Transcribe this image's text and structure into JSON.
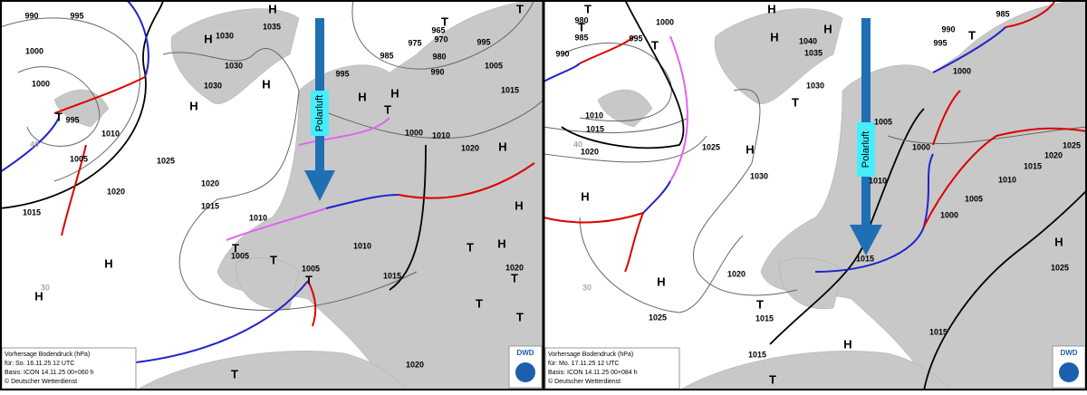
{
  "panels": [
    {
      "labels": [
        "990",
        "995",
        "1000",
        "1000",
        "995",
        "1005",
        "1010",
        "1020",
        "1015",
        "1025",
        "1020",
        "1015",
        "1010",
        "1005",
        "1030",
        "1035",
        "1030",
        "1030",
        "995",
        "985",
        "975",
        "970",
        "965",
        "980",
        "990",
        "995",
        "1005",
        "1015",
        "1000",
        "1010",
        "1020",
        "1010",
        "1015",
        "1005",
        "1020",
        "1020",
        "40",
        "30",
        "H",
        "H",
        "H",
        "H",
        "H",
        "H",
        "T",
        "T",
        "T",
        "T",
        "H",
        "H",
        "H",
        "T",
        "T",
        "T",
        "H",
        "H",
        "T",
        "T",
        "T",
        "T",
        "T"
      ],
      "arrow_label": "Polarluft",
      "footer": [
        "Vorhersage Bodendruck (hPa)",
        "für: So. 16.11.25  12 UTC",
        "Basis: ICON  14.11.25 00+060 h",
        "© Deutscher Wetterdienst"
      ],
      "logo": "DWD"
    },
    {
      "labels": [
        "980",
        "985",
        "995",
        "1000",
        "990",
        "1010",
        "1015",
        "1020",
        "1025",
        "1030",
        "1040",
        "1035",
        "1030",
        "1005",
        "1010",
        "1015",
        "1020",
        "1025",
        "1015",
        "1015",
        "1015",
        "1000",
        "1005",
        "1000",
        "1010",
        "1015",
        "1020",
        "1025",
        "990",
        "995",
        "985",
        "1000",
        "1025",
        "40",
        "30",
        "T",
        "T",
        "T",
        "H",
        "H",
        "H",
        "T",
        "T",
        "H",
        "H",
        "H",
        "H",
        "T",
        "T",
        "H"
      ],
      "arrow_label": "Polarluft",
      "footer": [
        "Vorhersage Bodendruck (hPa)",
        "für: Mo. 17.11.25  12 UTC",
        "Basis: ICON  14.11.25 00+084 h",
        "© Deutscher Wetterdienst"
      ],
      "logo": "DWD"
    }
  ]
}
